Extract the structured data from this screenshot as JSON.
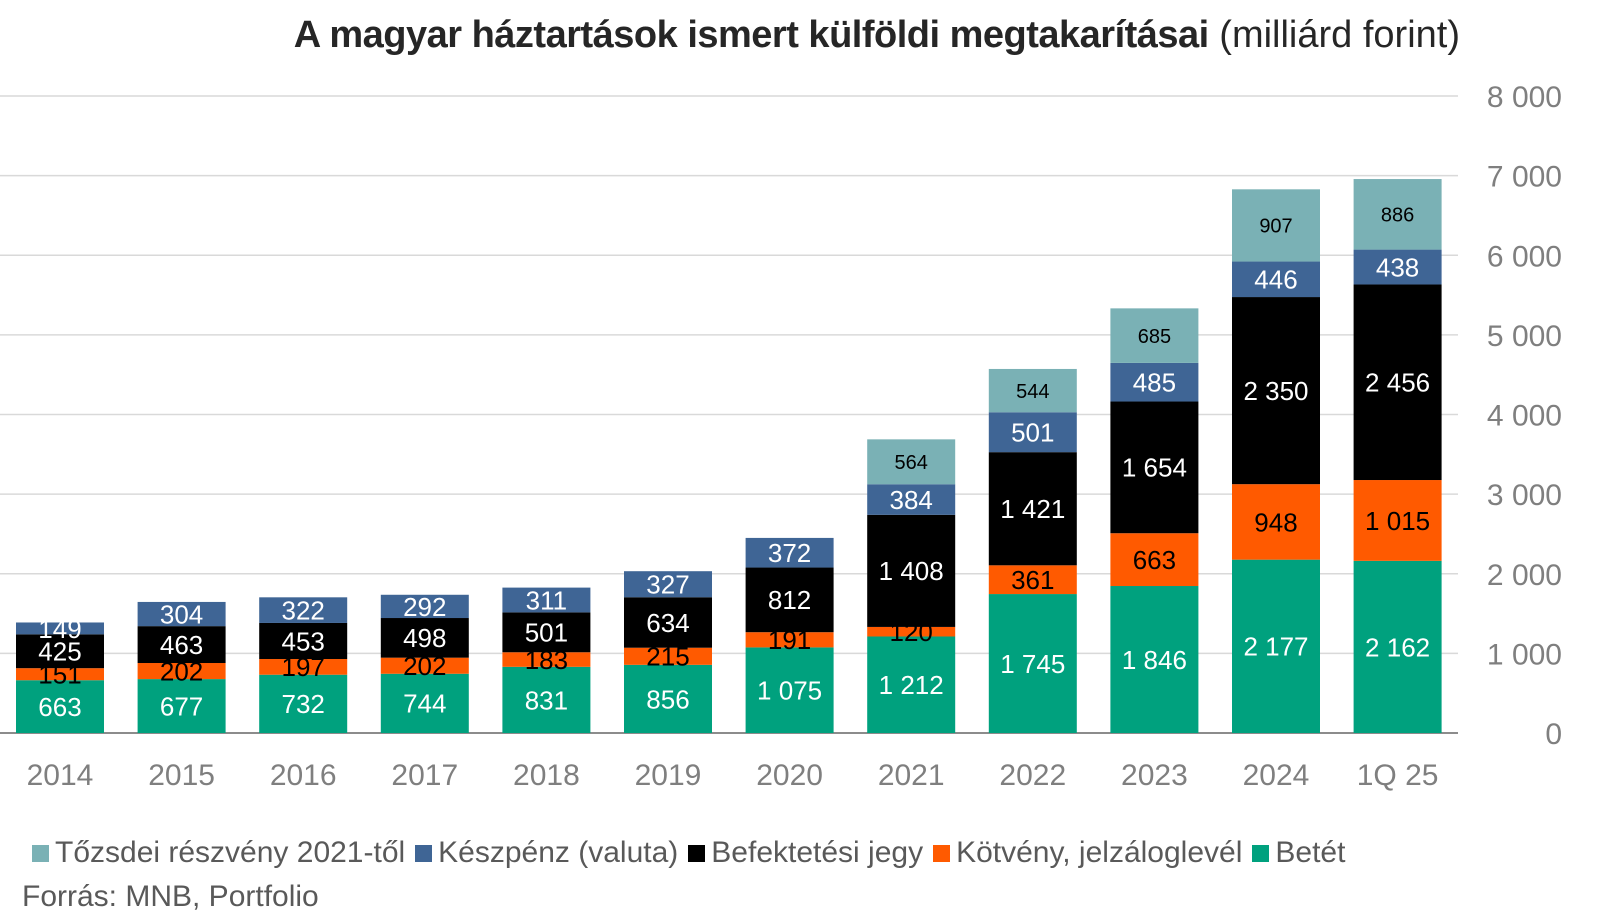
{
  "title": {
    "bold": "A magyar háztartások ismert külföldi megtakarításai",
    "unit": "(milliárd forint)"
  },
  "source": "Forrás: MNB, Portfolio",
  "colors": {
    "Betét": "#00a17e",
    "Kötvény, jelzáloglevél": "#ff5a00",
    "Befektetési jegy": "#000000",
    "Készpénz (valuta)": "#3f6595",
    "Tőzsdei részvény 2021-től": "#7ab1b5"
  },
  "chart_data": {
    "type": "bar",
    "stacked": true,
    "title": "A magyar háztartások ismert külföldi megtakarításai (milliárd forint)",
    "categories": [
      "2014",
      "2015",
      "2016",
      "2017",
      "2018",
      "2019",
      "2020",
      "2021",
      "2022",
      "2023",
      "2024",
      "1Q 25"
    ],
    "series": [
      {
        "name": "Betét",
        "values": [
          663,
          677,
          732,
          744,
          831,
          856,
          1075,
          1212,
          1745,
          1846,
          2177,
          2162
        ],
        "labels": [
          "663",
          "677",
          "732",
          "744",
          "831",
          "856",
          "1 075",
          "1 212",
          "1 745",
          "1 846",
          "2 177",
          "2 162"
        ]
      },
      {
        "name": "Kötvény, jelzáloglevél",
        "values": [
          151,
          202,
          197,
          202,
          183,
          215,
          191,
          120,
          361,
          663,
          948,
          1015
        ],
        "labels": [
          "151",
          "202",
          "197",
          "202",
          "183",
          "215",
          "191",
          "120",
          "361",
          "663",
          "948",
          "1 015"
        ]
      },
      {
        "name": "Befektetési jegy",
        "values": [
          425,
          463,
          453,
          498,
          501,
          634,
          812,
          1408,
          1421,
          1654,
          2350,
          2456
        ],
        "labels": [
          "425",
          "463",
          "453",
          "498",
          "501",
          "634",
          "812",
          "1 408",
          "1 421",
          "1 654",
          "2 350",
          "2 456"
        ]
      },
      {
        "name": "Készpénz (valuta)",
        "values": [
          149,
          304,
          322,
          292,
          311,
          327,
          372,
          384,
          501,
          485,
          446,
          438
        ],
        "labels": [
          "149",
          "304",
          "322",
          "292",
          "311",
          "327",
          "372",
          "384",
          "501",
          "485",
          "446",
          "438"
        ]
      },
      {
        "name": "Tőzsdei részvény 2021-től",
        "values": [
          null,
          null,
          null,
          null,
          null,
          null,
          null,
          564,
          544,
          685,
          907,
          886
        ],
        "labels": [
          "",
          "",
          "",
          "",
          "",
          "",
          "",
          "564",
          "544",
          "685",
          "907",
          "886"
        ]
      }
    ],
    "legend_order": [
      "Tőzsdei részvény 2021-től",
      "Készpénz (valuta)",
      "Befektetési jegy",
      "Kötvény, jelzáloglevél",
      "Betét"
    ],
    "ylim": [
      0,
      8000
    ],
    "yticks": [
      0,
      1000,
      2000,
      3000,
      4000,
      5000,
      6000,
      7000,
      8000
    ],
    "ytick_labels": [
      "0",
      "1 000",
      "2 000",
      "3 000",
      "4 000",
      "5 000",
      "6 000",
      "7 000",
      "8 000"
    ],
    "y_axis_side": "right",
    "grid": true,
    "legend_position": "bottom"
  }
}
